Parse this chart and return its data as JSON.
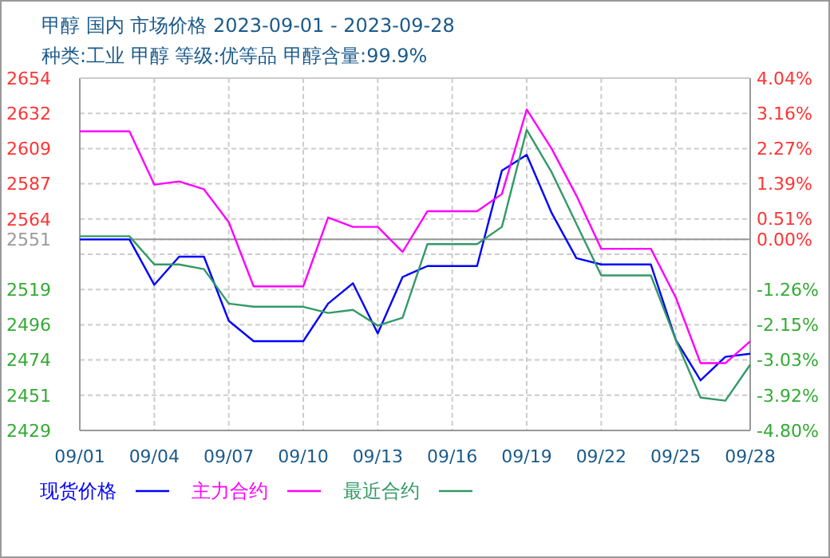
{
  "chart_data": {
    "type": "line",
    "title": "甲醇 国内 市场价格 2023-09-01 - 2023-09-28",
    "subtitle": "种类:工业 甲醇 等级:优等品 甲醇含量:99.9%",
    "x": [
      "2023-09-01",
      "2023-09-02",
      "2023-09-03",
      "2023-09-04",
      "2023-09-05",
      "2023-09-06",
      "2023-09-07",
      "2023-09-08",
      "2023-09-09",
      "2023-09-10",
      "2023-09-11",
      "2023-09-12",
      "2023-09-13",
      "2023-09-14",
      "2023-09-15",
      "2023-09-16",
      "2023-09-17",
      "2023-09-18",
      "2023-09-19",
      "2023-09-20",
      "2023-09-21",
      "2023-09-22",
      "2023-09-23",
      "2023-09-24",
      "2023-09-25",
      "2023-09-26",
      "2023-09-27",
      "2023-09-28"
    ],
    "series": [
      {
        "name": "现货价格",
        "color": "#0000ff",
        "values": [
          2551,
          2551,
          2551,
          2522,
          2540,
          2540,
          2499,
          2486,
          2486,
          2486,
          2510,
          2523,
          2491,
          2527,
          2534,
          2534,
          2534,
          2595,
          2605,
          2568,
          2539,
          2535,
          2535,
          2535,
          2487,
          2461,
          2476,
          2478
        ]
      },
      {
        "name": "主力合约",
        "color": "#ff00ff",
        "values": [
          2620,
          2620,
          2620,
          2586,
          2588,
          2583,
          2562,
          2521,
          2521,
          2521,
          2565,
          2559,
          2559,
          2543,
          2569,
          2569,
          2569,
          2580,
          2634,
          2609,
          2579,
          2545,
          2545,
          2545,
          2514,
          2472,
          2472,
          2486
        ]
      },
      {
        "name": "最近合约",
        "color": "#339966",
        "values": [
          2553,
          2553,
          2553,
          2535,
          2535,
          2532,
          2510,
          2508,
          2508,
          2508,
          2504,
          2506,
          2496,
          2501,
          2548,
          2548,
          2548,
          2559,
          2621,
          2594,
          2561,
          2528,
          2528,
          2528,
          2487,
          2450,
          2448,
          2471
        ]
      }
    ],
    "xlim": [
      "2023-09-01",
      "2023-09-28"
    ],
    "xticks": [
      {
        "value": "2023-09-01",
        "label": "09/01"
      },
      {
        "value": "2023-09-04",
        "label": "09/04"
      },
      {
        "value": "2023-09-07",
        "label": "09/07"
      },
      {
        "value": "2023-09-10",
        "label": "09/10"
      },
      {
        "value": "2023-09-13",
        "label": "09/13"
      },
      {
        "value": "2023-09-16",
        "label": "09/16"
      },
      {
        "value": "2023-09-19",
        "label": "09/19"
      },
      {
        "value": "2023-09-22",
        "label": "09/22"
      },
      {
        "value": "2023-09-25",
        "label": "09/25"
      },
      {
        "value": "2023-09-28",
        "label": "09/28"
      }
    ],
    "ylim": [
      2429,
      2654
    ],
    "yticks": [
      2429,
      {
        "value": 2451.5,
        "label": "2451"
      },
      2474,
      {
        "value": 2496.5,
        "label": "2496"
      },
      2519,
      {
        "value": 2541.5,
        "label": null
      },
      2551,
      2564,
      {
        "value": 2586.5,
        "label": "2587"
      },
      2609,
      {
        "value": 2631.5,
        "label": "2632"
      },
      2654
    ],
    "y2lim": [
      -4.8,
      4.04
    ],
    "y2ticks": [
      {
        "value": -4.8,
        "label": "-4.80%"
      },
      {
        "value": -3.92,
        "label": "-3.92%"
      },
      {
        "value": -3.03,
        "label": "-3.03%"
      },
      {
        "value": -2.15,
        "label": "-2.15%"
      },
      {
        "value": -1.26,
        "label": "-1.26%"
      },
      {
        "value": 0,
        "label": "0.00%"
      },
      {
        "value": 0.51,
        "label": "0.51%"
      },
      {
        "value": 1.39,
        "label": "1.39%"
      },
      {
        "value": 2.27,
        "label": "2.27%"
      },
      {
        "value": 3.16,
        "label": "3.16%"
      },
      {
        "value": 4.04,
        "label": "4.04%"
      }
    ],
    "ref_lines": [
      {
        "axis": "y",
        "value": 2551,
        "color": "#999999"
      }
    ],
    "grid": true,
    "legend": "bottom",
    "marker": "none",
    "line_style": "solid"
  }
}
